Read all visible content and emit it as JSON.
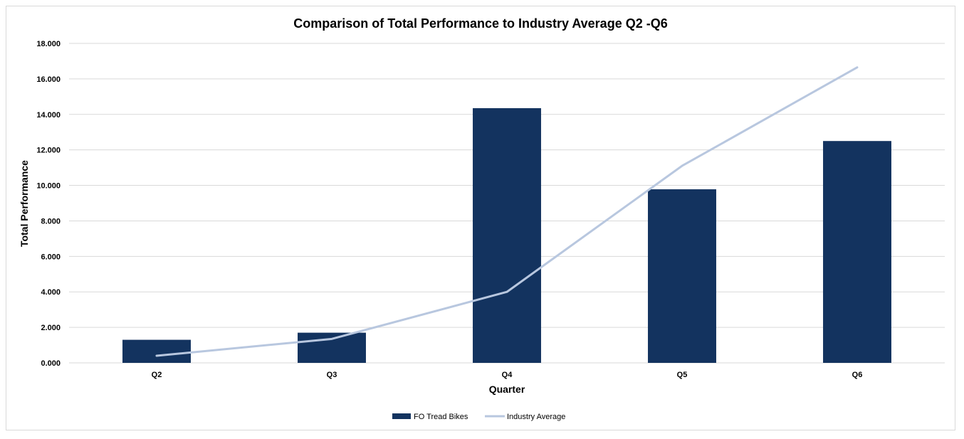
{
  "chart_data": {
    "type": "bar",
    "title": "Comparison of Total Performance to Industry Average Q2 -Q6",
    "xlabel": "Quarter",
    "ylabel": "Total Performance",
    "categories": [
      "Q2",
      "Q3",
      "Q4",
      "Q5",
      "Q6"
    ],
    "ylim": [
      0,
      18
    ],
    "yticks": [
      "0.000",
      "2.000",
      "4.000",
      "6.000",
      "8.000",
      "10.000",
      "12.000",
      "14.000",
      "16.000",
      "18.000"
    ],
    "grid": true,
    "legend_position": "bottom",
    "series": [
      {
        "name": "FO Tread Bikes",
        "type": "bar",
        "color": "#13335f",
        "values": [
          1.3,
          1.7,
          14.35,
          9.78,
          12.5
        ]
      },
      {
        "name": "Industry Average",
        "type": "line",
        "color": "#b8c7df",
        "values": [
          0.4,
          1.35,
          4.0,
          11.1,
          16.65
        ]
      }
    ]
  }
}
